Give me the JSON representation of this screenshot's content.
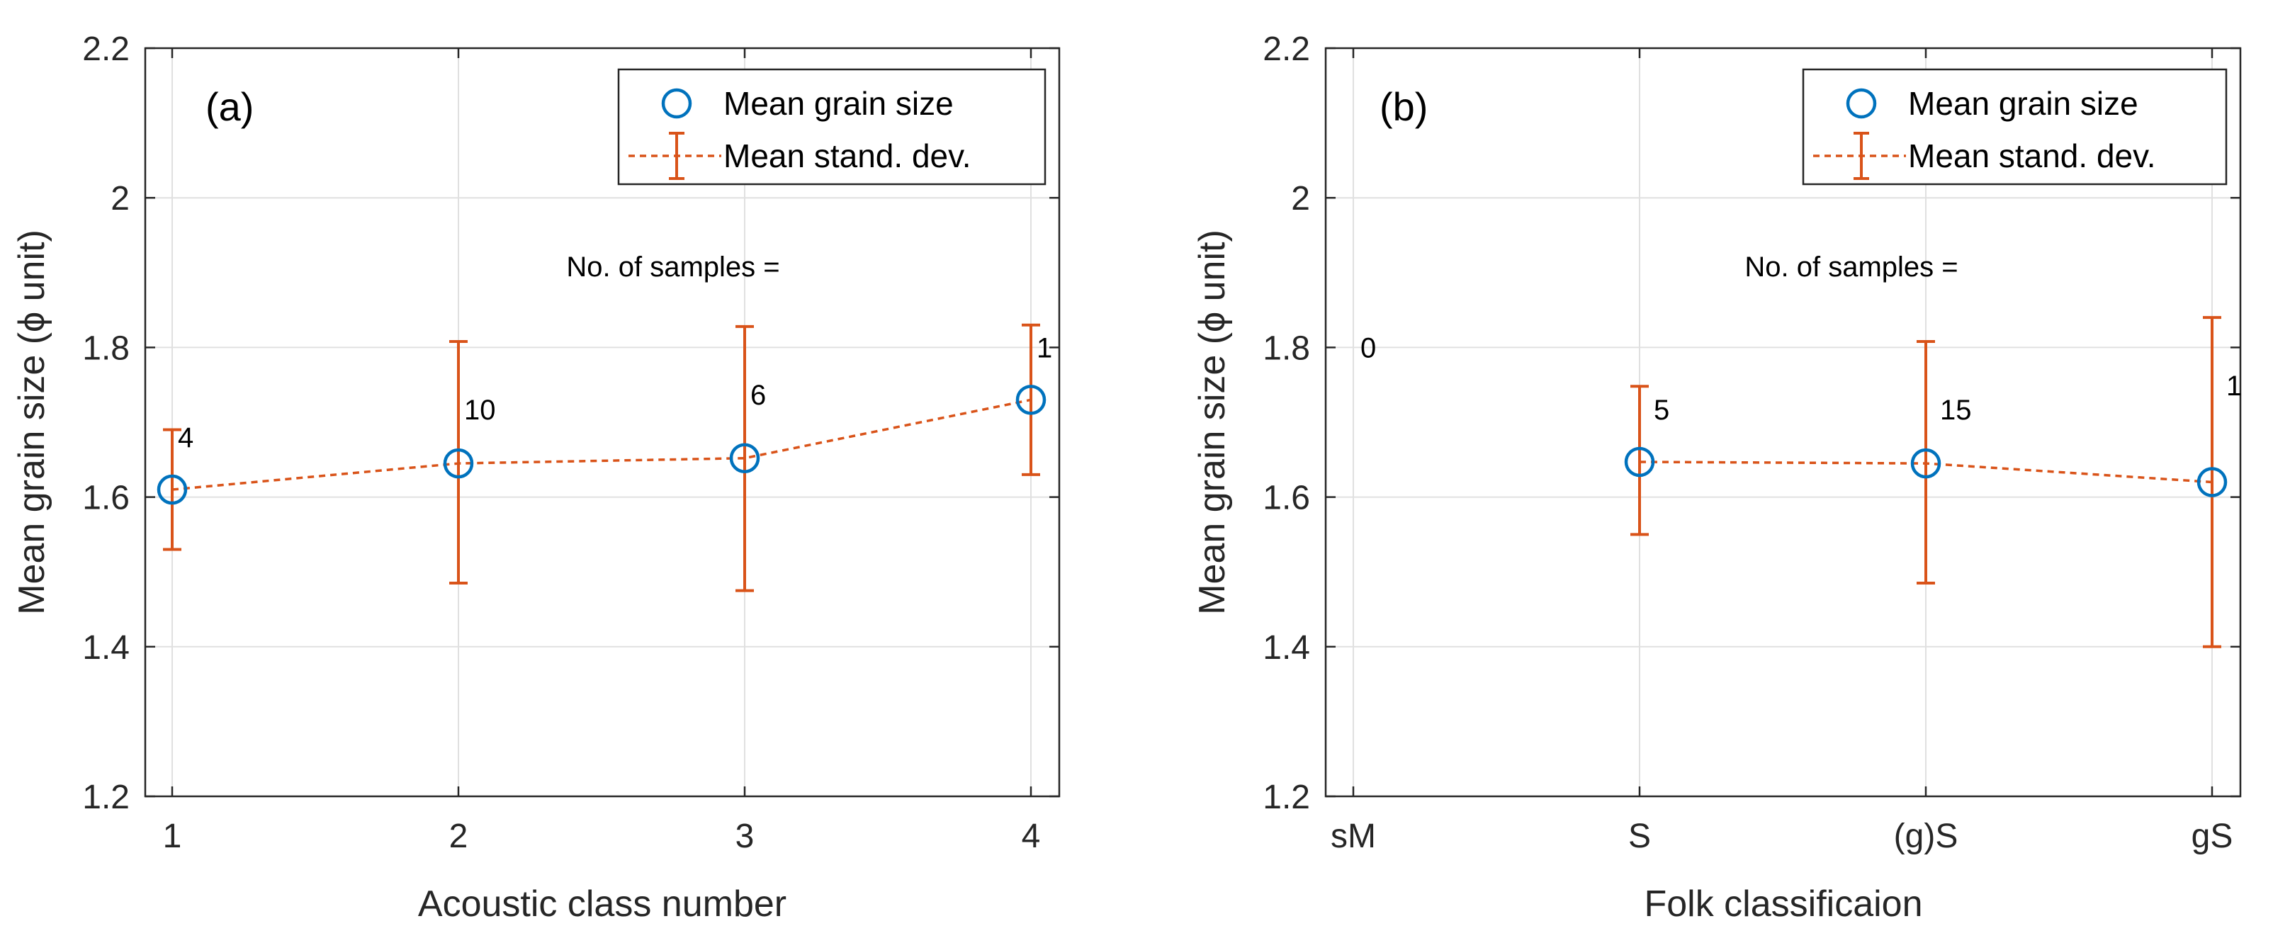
{
  "colors": {
    "mean": "#0072BD",
    "std": "#D95319"
  },
  "chart_data": [
    {
      "type": "line",
      "panel_label": "(a)",
      "xlabel": "Acoustic class number",
      "ylabel": "Mean grain size (ϕ unit)",
      "categories": [
        "1",
        "2",
        "3",
        "4"
      ],
      "ylim": [
        1.2,
        2.2
      ],
      "yticks": [
        "1.2",
        "1.4",
        "1.6",
        "1.8",
        "2",
        "2.2"
      ],
      "grid": true,
      "legend_position": "top-right",
      "annotation": "No. of samples =",
      "series": [
        {
          "name": "Mean grain size",
          "values": [
            1.61,
            1.645,
            1.652,
            1.73
          ]
        },
        {
          "name": "Mean stand. dev.",
          "lower": [
            1.53,
            1.485,
            1.475,
            1.63
          ],
          "upper": [
            1.69,
            1.808,
            1.828,
            1.83
          ]
        }
      ],
      "sample_counts": [
        "4",
        "10",
        "6",
        "1"
      ]
    },
    {
      "type": "line",
      "panel_label": "(b)",
      "xlabel": "Folk classificaion",
      "ylabel": "Mean grain size (ϕ unit)",
      "categories": [
        "sM",
        "S",
        "(g)S",
        "gS"
      ],
      "ylim": [
        1.2,
        2.2
      ],
      "yticks": [
        "1.2",
        "1.4",
        "1.6",
        "1.8",
        "2",
        "2.2"
      ],
      "grid": true,
      "legend_position": "top-right",
      "annotation": "No. of samples =",
      "series": [
        {
          "name": "Mean grain size",
          "values": [
            null,
            1.647,
            1.645,
            1.62
          ]
        },
        {
          "name": "Mean stand. dev.",
          "lower": [
            null,
            1.55,
            1.485,
            1.4
          ],
          "upper": [
            null,
            1.748,
            1.808,
            1.84
          ]
        }
      ],
      "sample_counts": [
        "0",
        "5",
        "15",
        "1"
      ]
    }
  ]
}
